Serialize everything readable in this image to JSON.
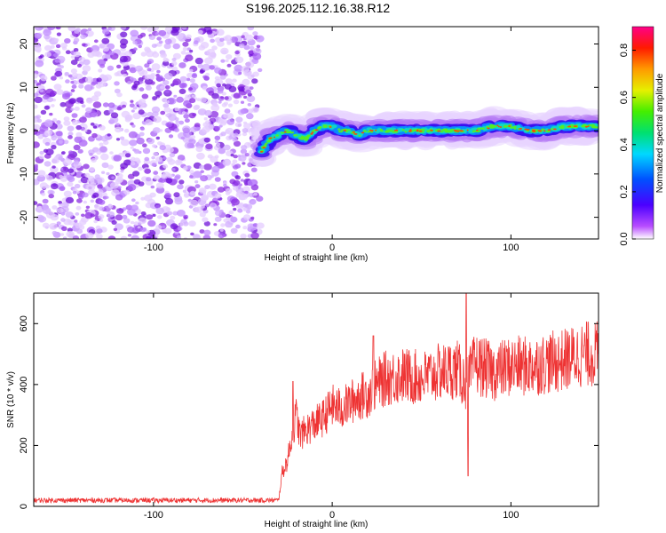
{
  "figure": {
    "title": "S196.2025.112.16.38.R12"
  },
  "chart_data": [
    {
      "type": "heatmap",
      "title": "S196.2025.112.16.38.R12",
      "xlabel": "Height of straight line (km)",
      "ylabel": "Frequency (Hz)",
      "xlim": [
        -167,
        149
      ],
      "ylim": [
        -25,
        24
      ],
      "x_ticks": [
        "-100",
        "0",
        "100"
      ],
      "y_ticks": [
        "-20",
        "-10",
        "0",
        "10",
        "20"
      ],
      "noise_region_x": [
        -167,
        -40
      ],
      "signal_start_x": -40,
      "signal_track": {
        "x": [
          -40,
          -35,
          -30,
          -25,
          -20,
          -15,
          -10,
          -5,
          0,
          5,
          10,
          15,
          20,
          25,
          30,
          40,
          50,
          60,
          70,
          80,
          90,
          100,
          110,
          120,
          130,
          140,
          149
        ],
        "freq": [
          -5,
          -2,
          -1,
          0,
          -1,
          -2,
          0,
          1,
          1,
          0,
          0,
          -1,
          0,
          0,
          0,
          0,
          0,
          0,
          0,
          0,
          1,
          1,
          0,
          0,
          1,
          1,
          1
        ]
      },
      "colorbar": {
        "label": "Normalized spectral amplitude",
        "range": [
          0,
          0.9
        ],
        "ticks": [
          "0.0",
          "0.2",
          "0.4",
          "0.6",
          "0.8"
        ]
      },
      "colors": {
        "noise": "#8a2be2",
        "track_core": "#ff0000"
      }
    },
    {
      "type": "line",
      "xlabel": "Height of straight line (km)",
      "ylabel": "SNR (10 * v/v)",
      "xlim": [
        -167,
        149
      ],
      "ylim": [
        0,
        700
      ],
      "x_ticks": [
        "-100",
        "0",
        "100"
      ],
      "y_ticks": [
        "0",
        "200",
        "400",
        "600"
      ],
      "series": [
        {
          "color": "#ee3333",
          "x": [
            -167,
            -150,
            -130,
            -110,
            -90,
            -70,
            -50,
            -30,
            -28,
            -25,
            -22,
            -20,
            -18,
            -15,
            -10,
            -5,
            0,
            5,
            10,
            15,
            20,
            25,
            30,
            40,
            50,
            60,
            70,
            75,
            80,
            90,
            100,
            110,
            120,
            130,
            140,
            149
          ],
          "y": [
            20,
            20,
            20,
            20,
            20,
            20,
            20,
            20,
            110,
            150,
            250,
            300,
            230,
            250,
            270,
            290,
            330,
            320,
            340,
            360,
            370,
            400,
            420,
            430,
            420,
            440,
            450,
            400,
            470,
            440,
            460,
            460,
            470,
            480,
            500,
            500
          ],
          "spike_x": [
            -22,
            23,
            75,
            76
          ],
          "spike_y": [
            410,
            560,
            700,
            100
          ]
        }
      ]
    }
  ]
}
